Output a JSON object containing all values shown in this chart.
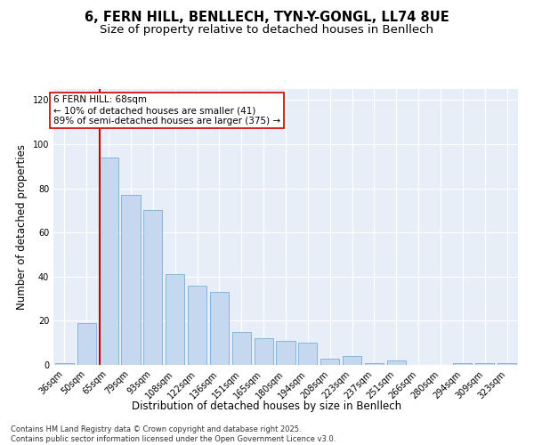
{
  "title1": "6, FERN HILL, BENLLECH, TYN-Y-GONGL, LL74 8UE",
  "title2": "Size of property relative to detached houses in Benllech",
  "xlabel": "Distribution of detached houses by size in Benllech",
  "ylabel": "Number of detached properties",
  "categories": [
    "36sqm",
    "50sqm",
    "65sqm",
    "79sqm",
    "93sqm",
    "108sqm",
    "122sqm",
    "136sqm",
    "151sqm",
    "165sqm",
    "180sqm",
    "194sqm",
    "208sqm",
    "223sqm",
    "237sqm",
    "251sqm",
    "266sqm",
    "280sqm",
    "294sqm",
    "309sqm",
    "323sqm"
  ],
  "values": [
    1,
    19,
    94,
    77,
    70,
    41,
    36,
    33,
    15,
    12,
    11,
    10,
    3,
    4,
    1,
    2,
    0,
    0,
    1,
    1,
    1
  ],
  "bar_color": "#c5d8f0",
  "bar_edge_color": "#7aadd4",
  "vline_index": 2,
  "vline_color": "#cc0000",
  "annotation_text": "6 FERN HILL: 68sqm\n← 10% of detached houses are smaller (41)\n89% of semi-detached houses are larger (375) →",
  "ylim": [
    0,
    125
  ],
  "yticks": [
    0,
    20,
    40,
    60,
    80,
    100,
    120
  ],
  "bg_color": "#e8eef8",
  "footer_line1": "Contains HM Land Registry data © Crown copyright and database right 2025.",
  "footer_line2": "Contains public sector information licensed under the Open Government Licence v3.0.",
  "title_fontsize": 10.5,
  "subtitle_fontsize": 9.5,
  "axis_label_fontsize": 8.5,
  "tick_fontsize": 7,
  "annotation_fontsize": 7.5,
  "footer_fontsize": 6
}
